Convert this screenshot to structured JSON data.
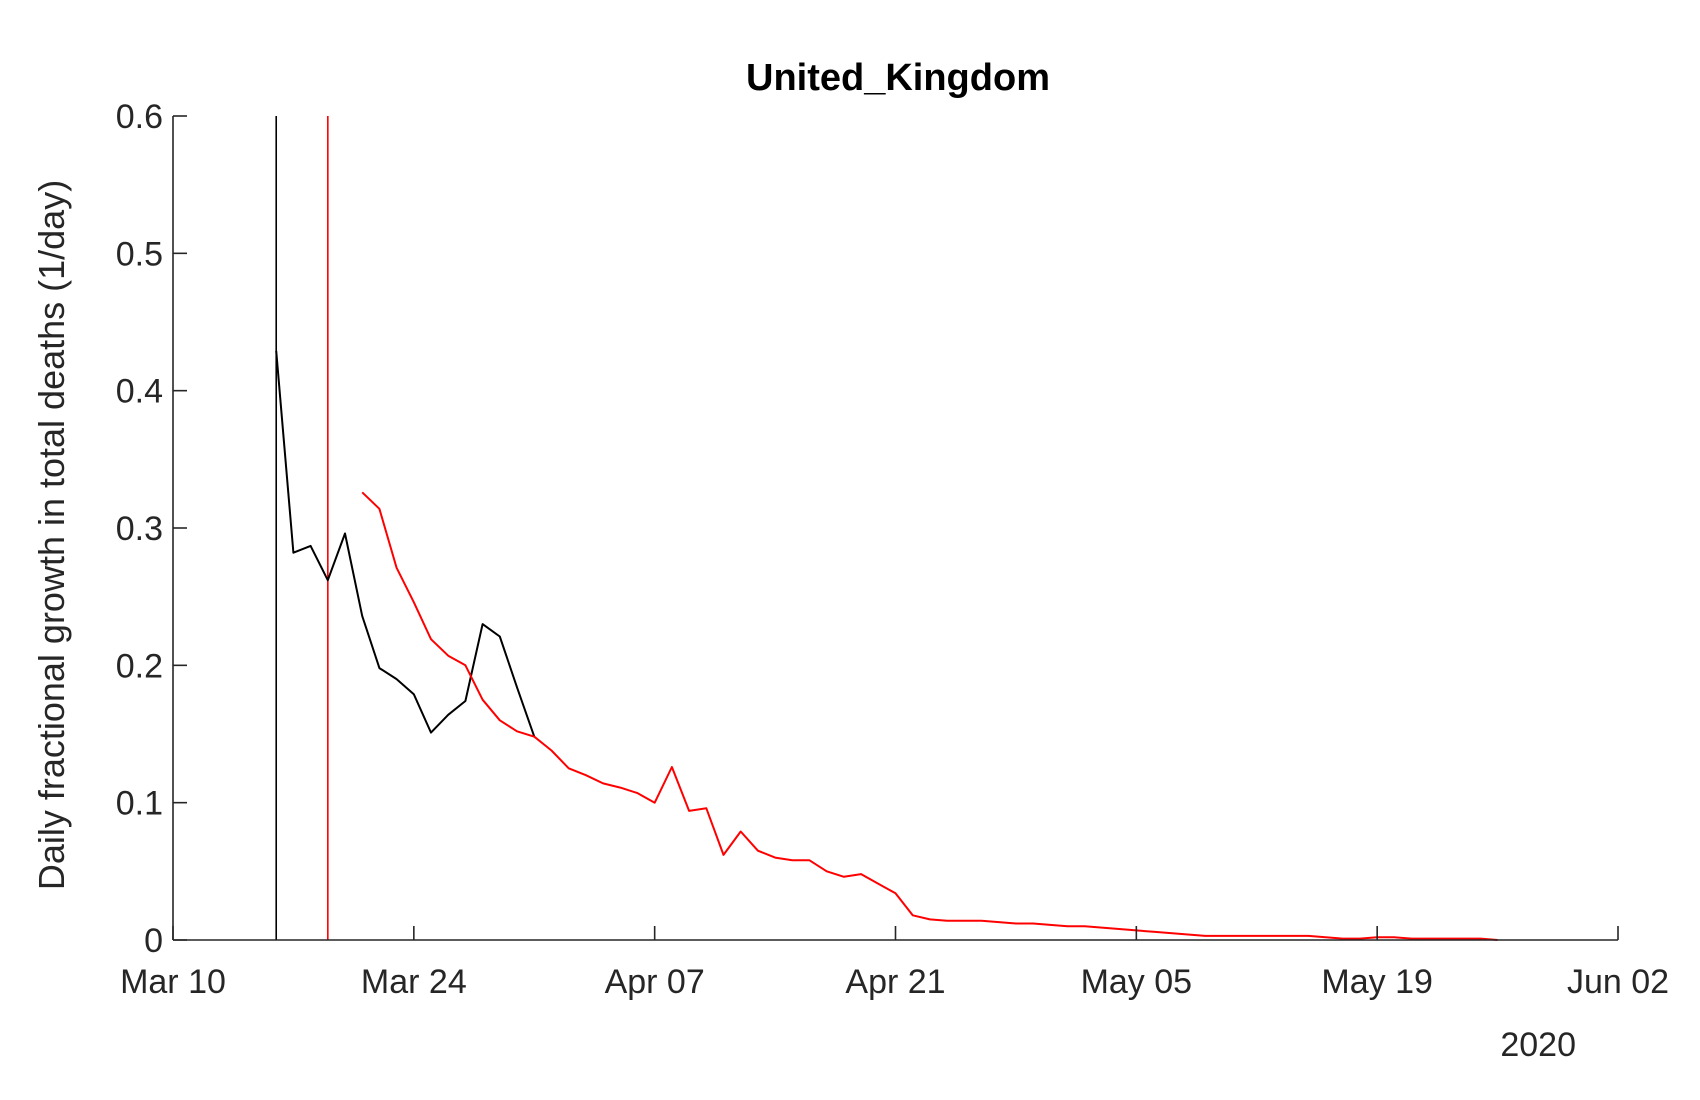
{
  "chart_data": {
    "type": "line",
    "title": "United_Kingdom",
    "ylabel": "Daily fractional growth in total deaths (1/day)",
    "xlabel": "",
    "x_year_label": "2020",
    "xlim": [
      "2020-03-10",
      "2020-06-02"
    ],
    "ylim": [
      0,
      0.6
    ],
    "x_ticks": [
      "2020-03-10",
      "2020-03-24",
      "2020-04-07",
      "2020-04-21",
      "2020-05-05",
      "2020-05-19",
      "2020-06-02"
    ],
    "x_tick_labels": [
      "Mar 10",
      "Mar 24",
      "Apr 07",
      "Apr 21",
      "May 05",
      "May 19",
      "Jun 02"
    ],
    "y_ticks": [
      0,
      0.1,
      0.2,
      0.3,
      0.4,
      0.5,
      0.6
    ],
    "y_tick_labels": [
      "0",
      "0.1",
      "0.2",
      "0.3",
      "0.4",
      "0.5",
      "0.6"
    ],
    "grid": false,
    "vertical_lines": [
      {
        "x": "2020-03-16",
        "color": "#000000"
      },
      {
        "x": "2020-03-19",
        "color": "#ff0000"
      }
    ],
    "series": [
      {
        "color": "#000000",
        "x": [
          "2020-03-16",
          "2020-03-17",
          "2020-03-18",
          "2020-03-19",
          "2020-03-20",
          "2020-03-21",
          "2020-03-22",
          "2020-03-23",
          "2020-03-24",
          "2020-03-25",
          "2020-03-26",
          "2020-03-27",
          "2020-03-28",
          "2020-03-29",
          "2020-03-30",
          "2020-03-31"
        ],
        "values": [
          0.429,
          0.282,
          0.287,
          0.262,
          0.296,
          0.236,
          0.198,
          0.19,
          0.179,
          0.151,
          0.164,
          0.174,
          0.23,
          0.221,
          0.184,
          0.148
        ]
      },
      {
        "color": "#ff0000",
        "x": [
          "2020-03-21",
          "2020-03-22",
          "2020-03-23",
          "2020-03-24",
          "2020-03-25",
          "2020-03-26",
          "2020-03-27",
          "2020-03-28",
          "2020-03-29",
          "2020-03-30",
          "2020-03-31",
          "2020-04-01",
          "2020-04-02",
          "2020-04-03",
          "2020-04-04",
          "2020-04-05",
          "2020-04-06",
          "2020-04-07",
          "2020-04-08",
          "2020-04-09",
          "2020-04-10",
          "2020-04-11",
          "2020-04-12",
          "2020-04-13",
          "2020-04-14",
          "2020-04-15",
          "2020-04-16",
          "2020-04-17",
          "2020-04-18",
          "2020-04-19",
          "2020-04-20",
          "2020-04-21",
          "2020-04-22",
          "2020-04-23",
          "2020-04-24",
          "2020-04-25",
          "2020-04-26",
          "2020-04-27",
          "2020-04-28",
          "2020-04-29",
          "2020-04-30",
          "2020-05-01",
          "2020-05-02",
          "2020-05-03",
          "2020-05-04",
          "2020-05-05",
          "2020-05-06",
          "2020-05-07",
          "2020-05-08",
          "2020-05-09",
          "2020-05-10",
          "2020-05-11",
          "2020-05-12",
          "2020-05-13",
          "2020-05-14",
          "2020-05-15",
          "2020-05-16",
          "2020-05-17",
          "2020-05-18",
          "2020-05-19",
          "2020-05-20",
          "2020-05-21",
          "2020-05-22",
          "2020-05-23",
          "2020-05-24",
          "2020-05-25",
          "2020-05-26"
        ],
        "values": [
          0.326,
          0.314,
          0.271,
          0.246,
          0.219,
          0.207,
          0.2,
          0.175,
          0.16,
          0.152,
          0.148,
          0.138,
          0.125,
          0.12,
          0.114,
          0.111,
          0.107,
          0.1,
          0.126,
          0.094,
          0.096,
          0.062,
          0.079,
          0.065,
          0.06,
          0.058,
          0.058,
          0.05,
          0.046,
          0.048,
          0.041,
          0.034,
          0.018,
          0.015,
          0.014,
          0.014,
          0.014,
          0.013,
          0.012,
          0.012,
          0.011,
          0.01,
          0.01,
          0.009,
          0.008,
          0.007,
          0.006,
          0.005,
          0.004,
          0.003,
          0.003,
          0.003,
          0.003,
          0.003,
          0.003,
          0.003,
          0.002,
          0.001,
          0.001,
          0.002,
          0.002,
          0.001,
          0.001,
          0.001,
          0.001,
          0.001,
          0.0
        ]
      }
    ]
  }
}
